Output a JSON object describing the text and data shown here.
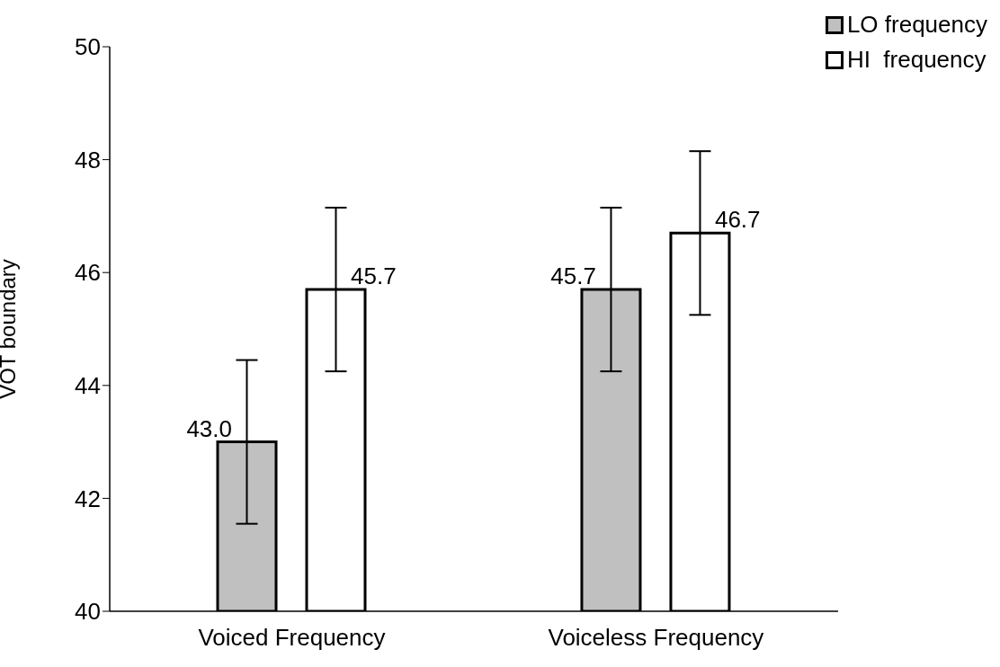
{
  "chart_data": {
    "type": "bar",
    "ylabel": "VOT boundary",
    "categories": [
      "Voiced Frequency",
      "Voiceless Frequency"
    ],
    "ylim": [
      40,
      50
    ],
    "yticks": [
      40,
      42,
      44,
      46,
      48,
      50
    ],
    "grid": false,
    "legend": "top right",
    "series": [
      {
        "name": "LO frequency",
        "color": "#c0c0c0",
        "values": [
          43.0,
          45.7
        ],
        "errors": [
          1.45,
          1.45
        ],
        "value_labels": [
          "43.0",
          "45.7"
        ]
      },
      {
        "name": "HI  frequency",
        "color": "#ffffff",
        "values": [
          45.7,
          46.7
        ],
        "errors": [
          1.45,
          1.45
        ],
        "value_labels": [
          "45.7",
          "46.7"
        ]
      }
    ]
  }
}
